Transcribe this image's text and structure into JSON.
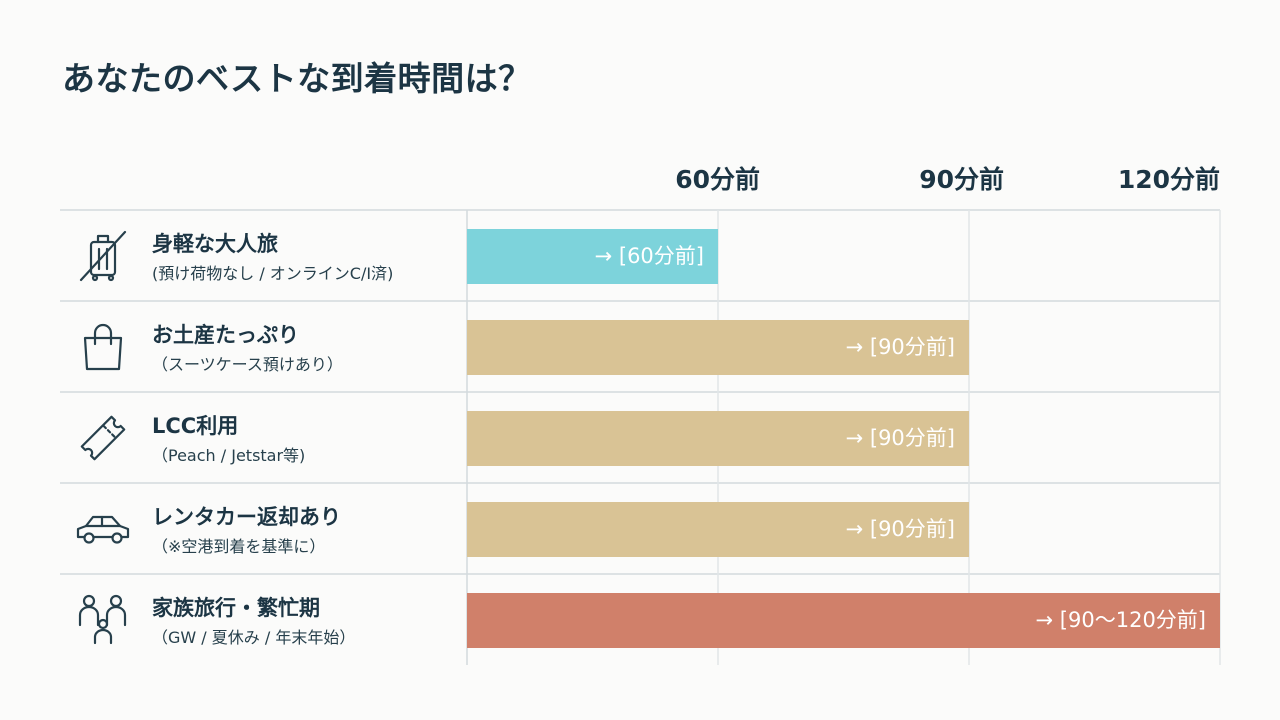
{
  "title": "あなたのベストな到着時間は？",
  "chart_data": {
    "type": "bar",
    "orientation": "horizontal",
    "x_ticks": [
      "60分前",
      "90分前",
      "120分前"
    ],
    "xlim": [
      30,
      120
    ],
    "categories": [
      {
        "title": "身軽な大人旅",
        "subtitle": "(預け荷物なし / オンラインC/I済)",
        "icon": "luggage-crossed-icon"
      },
      {
        "title": "お土産たっぷり",
        "subtitle": "（スーツケース預けあり）",
        "icon": "shopping-bag-icon"
      },
      {
        "title": "LCC利用",
        "subtitle": "（Peach / Jetstar等)",
        "icon": "ticket-icon"
      },
      {
        "title": "レンタカー返却あり",
        "subtitle": "（※空港到着を基準に）",
        "icon": "car-icon"
      },
      {
        "title": "家族旅行・繁忙期",
        "subtitle": "（GW / 夏休み / 年末年始）",
        "icon": "family-icon"
      }
    ],
    "values": [
      60,
      90,
      90,
      90,
      120
    ],
    "value_labels": [
      "→ [60分前]",
      "→ [90分前]",
      "→ [90分前]",
      "→ [90分前]",
      "→ [90〜120分前]"
    ],
    "colors": [
      "#7dd3db",
      "#d9c395",
      "#d9c395",
      "#d9c395",
      "#d0806a"
    ],
    "grid": true
  }
}
